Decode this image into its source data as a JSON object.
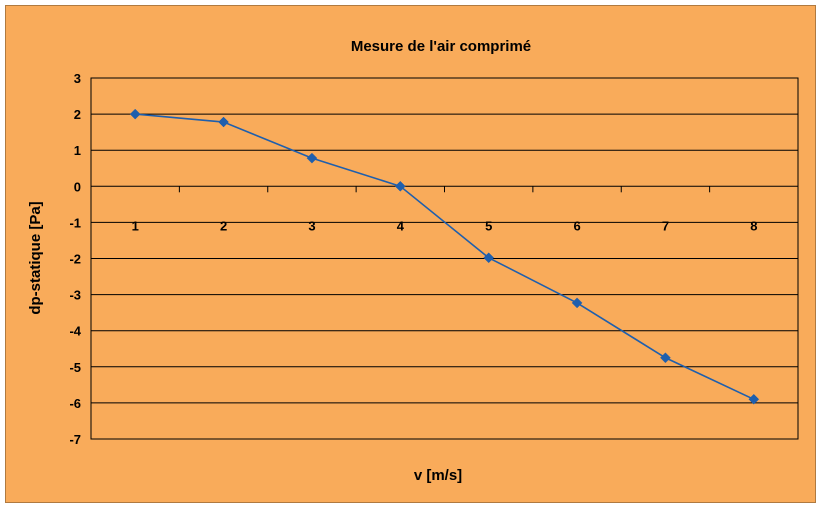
{
  "chart_data": {
    "type": "line",
    "title": "Mesure de l'air comprimé",
    "xlabel": "v [m/s]",
    "ylabel": "dp-statique [Pa]",
    "categories": [
      "1",
      "2",
      "3",
      "4",
      "5",
      "6",
      "7",
      "8"
    ],
    "series": [
      {
        "values": [
          2.0,
          1.78,
          0.78,
          0.0,
          -1.98,
          -3.23,
          -4.75,
          -5.9
        ],
        "color": "#1f5fad"
      }
    ],
    "ylim": [
      -7,
      3
    ],
    "yticks": [
      3,
      2,
      1,
      0,
      -1,
      -2,
      -3,
      -4,
      -5,
      -6,
      -7
    ],
    "grid": true,
    "legend": "none",
    "background_color": "#f9ab5a",
    "gridline_color": "#000000"
  }
}
